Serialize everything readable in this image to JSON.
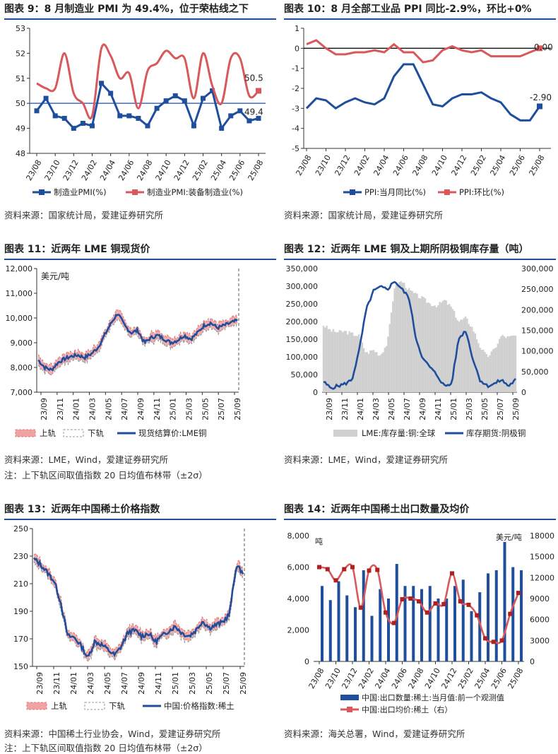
{
  "colors": {
    "blue": "#1f4e9c",
    "red": "#d9585b",
    "pink": "#f0a3a3",
    "gray": "#d0d0d0",
    "lineblue": "#2f5ec4"
  },
  "panels": [
    {
      "title": "图表 9：8 月制造业 PMI 为 49.4%，位于荣枯线之下",
      "source": "资料来源：国家统计局，爱建证券研究所",
      "chart_data": {
        "type": "line",
        "title": "图表 9：8 月制造业 PMI 为 49.4%，位于荣枯线之下",
        "ylim": [
          48,
          53
        ],
        "yticks": [
          48,
          49,
          50,
          51,
          52,
          53
        ],
        "x": [
          "23/08",
          "23/09",
          "23/10",
          "23/11",
          "23/12",
          "24/01",
          "24/02",
          "24/03",
          "24/04",
          "24/05",
          "24/06",
          "24/07",
          "24/08",
          "24/09",
          "24/10",
          "24/11",
          "24/12",
          "25/01",
          "25/02",
          "25/03",
          "25/04",
          "25/05",
          "25/06",
          "25/07",
          "25/08"
        ],
        "xticks": [
          "23/08",
          "23/10",
          "23/12",
          "24/02",
          "24/04",
          "24/06",
          "24/08",
          "24/10",
          "24/12",
          "25/02",
          "25/04",
          "25/06",
          "25/08"
        ],
        "series": [
          {
            "name": "制造业PMI(%)",
            "values": [
              49.7,
              50.2,
              49.5,
              49.4,
              49.0,
              49.2,
              49.1,
              50.8,
              50.4,
              49.5,
              49.5,
              49.4,
              49.1,
              49.8,
              50.1,
              50.3,
              50.1,
              49.1,
              50.2,
              50.5,
              49.0,
              49.5,
              49.7,
              49.3,
              49.4
            ]
          },
          {
            "name": "制造业PMI:装备制造业(%)",
            "values": [
              50.8,
              50.6,
              50.6,
              52.0,
              50.4,
              50.0,
              49.5,
              52.2,
              51.9,
              51.0,
              51.2,
              49.8,
              51.3,
              51.6,
              52.1,
              51.8,
              51.8,
              50.2,
              52.0,
              50.7,
              50.0,
              51.8,
              51.8,
              50.3,
              50.5
            ]
          }
        ],
        "reference_line": 50,
        "labels": [
          "50.5",
          "49.4"
        ]
      }
    },
    {
      "title": "图表 10：8 月全部工业品 PPI 同比-2.9%，环比+0%",
      "source": "资料来源：国家统计局，爱建证券研究所",
      "chart_data": {
        "type": "line",
        "title": "图表 10：8 月全部工业品 PPI 同比-2.9%，环比+0%",
        "ylim": [
          -5,
          1
        ],
        "yticks": [
          -5,
          -4,
          -3,
          -2,
          -1,
          0,
          1
        ],
        "x": [
          "23/08",
          "23/09",
          "23/10",
          "23/11",
          "23/12",
          "24/01",
          "24/02",
          "24/03",
          "24/04",
          "24/05",
          "24/06",
          "24/07",
          "24/08",
          "24/09",
          "24/10",
          "24/11",
          "24/12",
          "25/01",
          "25/02",
          "25/03",
          "25/04",
          "25/05",
          "25/06",
          "25/07",
          "25/08"
        ],
        "xticks": [
          "23/08",
          "23/10",
          "23/12",
          "24/02",
          "24/04",
          "24/06",
          "24/08",
          "24/10",
          "24/12",
          "25/02",
          "25/04",
          "25/06",
          "25/08"
        ],
        "series": [
          {
            "name": "PPI:当月同比(%)",
            "values": [
              -3.0,
              -2.5,
              -2.6,
              -3.0,
              -2.7,
              -2.5,
              -2.7,
              -2.8,
              -2.5,
              -1.4,
              -0.8,
              -0.8,
              -1.8,
              -2.8,
              -2.9,
              -2.5,
              -2.3,
              -2.3,
              -2.2,
              -2.5,
              -2.7,
              -3.3,
              -3.6,
              -3.6,
              -2.9
            ]
          },
          {
            "name": "PPI:环比(%)",
            "values": [
              0.2,
              0.4,
              0.0,
              -0.3,
              -0.3,
              -0.2,
              -0.2,
              -0.1,
              -0.2,
              0.2,
              -0.2,
              -0.2,
              -0.7,
              -0.6,
              -0.1,
              0.1,
              -0.1,
              -0.2,
              -0.1,
              -0.4,
              -0.4,
              -0.4,
              -0.4,
              -0.2,
              0.0
            ]
          }
        ],
        "reference_line": 0,
        "labels": [
          "0.00",
          "-2.90"
        ]
      }
    },
    {
      "title": "图表 11：近两年 LME 铜现货价",
      "source": "资料来源：LME，Wind，爱建证券研究所",
      "note": "注：上下轨区间取值指数 20 日均值布林带（±2σ）",
      "chart_data": {
        "type": "line",
        "title": "图表 11：近两年 LME 铜现货价",
        "unit_label": "美元/吨",
        "ylim": [
          7000,
          12000
        ],
        "yticks": [
          7000,
          8000,
          9000,
          10000,
          11000,
          12000
        ],
        "ytick_labels": [
          "7,000",
          "8,000",
          "9,000",
          "10,000",
          "11,000",
          "12,000"
        ],
        "xticks": [
          "23/09",
          "23/11",
          "24/01",
          "24/03",
          "24/05",
          "24/07",
          "24/09",
          "24/11",
          "25/01",
          "25/03",
          "25/05",
          "25/07",
          "25/09"
        ],
        "series": [
          {
            "name": "现货结算价:LME铜",
            "values": [
              8300,
              8000,
              7900,
              8200,
              8350,
              8450,
              8500,
              8400,
              8550,
              8800,
              9300,
              9800,
              10200,
              9700,
              9400,
              9500,
              9000,
              9200,
              9300,
              9150,
              9000,
              9100,
              9300,
              9150,
              9400,
              9700,
              9800,
              9600,
              9700,
              9800,
              9900
            ]
          }
        ],
        "bands": {
          "upper": "上轨",
          "lower": "下轨"
        }
      }
    },
    {
      "title": "图表 12：近两年 LME 铜及上期所阴极铜库存量（吨）",
      "source": "资料来源：LME，Wind，爱建证券研究所",
      "chart_data": {
        "type": "area",
        "title": "图表 12：近两年 LME 铜及上期所阴极铜库存量（吨）",
        "ylim": [
          0,
          350000
        ],
        "yticks_left": [
          "0",
          "50,000",
          "100,000",
          "150,000",
          "200,000",
          "250,000",
          "300,000",
          "350,000"
        ],
        "y2lim": [
          0,
          300000
        ],
        "yticks_right": [
          "0",
          "50,000",
          "100,000",
          "150,000",
          "200,000",
          "250,000",
          "300,000"
        ],
        "xticks": [
          "23/09",
          "23/11",
          "24/01",
          "24/03",
          "24/05",
          "24/07",
          "24/09",
          "24/11",
          "25/01",
          "25/03",
          "25/05",
          "25/07",
          "25/09"
        ],
        "series": [
          {
            "name": "LME:库存量:铜:全球",
            "axis": "left",
            "values": [
              190000,
              175000,
              170000,
              172000,
              165000,
              160000,
              110000,
              120000,
              105000,
              140000,
              300000,
              315000,
              290000,
              275000,
              265000,
              250000,
              245000,
              260000,
              240000,
              200000,
              210000,
              180000,
              130000,
              100000,
              120000,
              160000,
              155000,
              160000
            ]
          },
          {
            "name": "库存期货:阴极铜",
            "axis": "right",
            "values": [
              25000,
              10000,
              15000,
              20000,
              30000,
              100000,
              200000,
              245000,
              255000,
              250000,
              270000,
              250000,
              230000,
              130000,
              80000,
              60000,
              40000,
              15000,
              20000,
              130000,
              150000,
              80000,
              30000,
              15000,
              20000,
              30000,
              15000,
              30000
            ]
          }
        ]
      }
    },
    {
      "title": "图表 13：近两年中国稀土价格指数",
      "source": "资料来源：中国稀土行业协会，Wind，爱建证券研究所",
      "note": "注：上下轨区间取值指数 20 日均值布林带（±2σ）",
      "chart_data": {
        "type": "line",
        "title": "图表 13：近两年中国稀土价格指数",
        "ylim": [
          150,
          250
        ],
        "yticks": [
          150,
          170,
          190,
          210,
          230,
          250
        ],
        "xticks": [
          "23/09",
          "23/11",
          "24/01",
          "24/03",
          "24/05",
          "24/07",
          "24/09",
          "24/11",
          "25/01",
          "25/03",
          "25/05",
          "25/07",
          "25/09"
        ],
        "series": [
          {
            "name": "中国:价格指数:稀土",
            "values": [
              228,
              224,
              218,
              212,
              196,
              172,
              171,
              165,
              156,
              168,
              166,
              162,
              158,
              165,
              175,
              176,
              172,
              174,
              168,
              172,
              176,
              179,
              174,
              172,
              176,
              183,
              178,
              180,
              182,
              188,
              223,
              218
            ]
          }
        ],
        "bands": {
          "upper": "上轨",
          "lower": "下轨"
        }
      }
    },
    {
      "title": "图表 14：近两年中国稀土出口数量及均价",
      "source": "资料来源：海关总署，Wind，爱建证券研究所",
      "chart_data": {
        "type": "bar",
        "title": "图表 14：近两年中国稀土出口数量及均价",
        "unit_left": "吨",
        "unit_right": "美元/吨",
        "ylim": [
          0,
          8000
        ],
        "yticks_left": [
          "0",
          "2,000",
          "4,000",
          "6,000",
          "8,000"
        ],
        "y2lim": [
          0,
          18000
        ],
        "yticks_right": [
          "0",
          "3000",
          "6000",
          "9000",
          "12000",
          "15000",
          "18000"
        ],
        "x": [
          "23/08",
          "23/09",
          "23/10",
          "23/11",
          "23/12",
          "24/01",
          "24/02",
          "24/03",
          "24/04",
          "24/05",
          "24/06",
          "24/07",
          "24/08",
          "24/09",
          "24/10",
          "24/11",
          "24/12",
          "25/01",
          "25/02",
          "25/03",
          "25/04",
          "25/05",
          "25/06",
          "25/07",
          "25/08"
        ],
        "xticks": [
          "23/08",
          "23/10",
          "23/12",
          "24/02",
          "24/04",
          "24/06",
          "24/08",
          "24/10",
          "24/12",
          "25/02",
          "25/04",
          "25/06",
          "25/08"
        ],
        "series": [
          {
            "name": "中国:出口数量:稀土:当月值:前一个观测值",
            "axis": "left",
            "values": [
              4800,
              3900,
              5100,
              4200,
              3450,
              5800,
              2900,
              4600,
              4000,
              6200,
              4800,
              4800,
              4600,
              4800,
              4000,
              4000,
              4800,
              5200,
              3200,
              4400,
              5600,
              5800,
              7600,
              6000,
              5800
            ]
          },
          {
            "name": "中国:出口均价:稀土（右）",
            "axis": "right",
            "values": [
              13500,
              13200,
              11600,
              13200,
              13500,
              7700,
              13000,
              13100,
              7000,
              5500,
              8900,
              9000,
              8600,
              7000,
              8300,
              8200,
              12600,
              8600,
              8100,
              6600,
              3300,
              2800,
              3000,
              6800,
              9800
            ]
          }
        ]
      }
    }
  ]
}
